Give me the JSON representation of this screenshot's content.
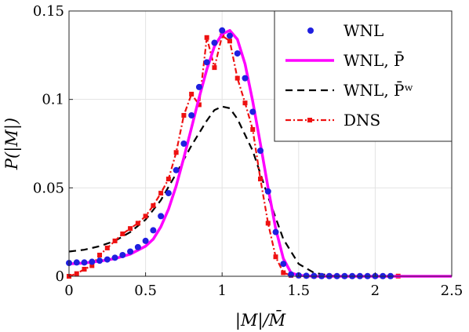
{
  "chart_data": {
    "type": "line",
    "xlabel": "|M|/M̄",
    "ylabel": "P(|M|)",
    "xlim": [
      0,
      2.5
    ],
    "ylim": [
      0,
      0.15
    ],
    "xticks": [
      "0",
      "0.5",
      "1",
      "1.5",
      "2",
      "2.5"
    ],
    "yticks": [
      "0",
      "0.05",
      "0.1",
      "0.15"
    ],
    "grid": true,
    "legend_position": "top-right",
    "colors": {
      "wnl_points": "#1f1fe0",
      "wnl_pbar": "#ff00ff",
      "wnl_pbar_w": "#000000",
      "dns": "#ee1111"
    },
    "series": [
      {
        "name": "WNL",
        "style": "markers",
        "x": [
          0,
          0.05,
          0.1,
          0.15,
          0.2,
          0.25,
          0.3,
          0.35,
          0.4,
          0.45,
          0.5,
          0.55,
          0.6,
          0.65,
          0.7,
          0.75,
          0.8,
          0.85,
          0.9,
          0.95,
          1.0,
          1.05,
          1.1,
          1.15,
          1.2,
          1.25,
          1.3,
          1.35,
          1.4,
          1.45,
          1.5,
          1.55,
          1.6,
          1.65,
          1.7,
          1.75,
          1.8,
          1.85,
          1.9,
          1.95,
          2.0,
          2.05,
          2.1
        ],
        "y": [
          0.0075,
          0.0078,
          0.0078,
          0.0082,
          0.0088,
          0.0095,
          0.0105,
          0.012,
          0.014,
          0.0165,
          0.02,
          0.026,
          0.034,
          0.047,
          0.06,
          0.075,
          0.091,
          0.107,
          0.121,
          0.132,
          0.139,
          0.136,
          0.126,
          0.112,
          0.093,
          0.071,
          0.048,
          0.025,
          0.007,
          0.001,
          0.0005,
          0.0003,
          0.0002,
          0.0001,
          0.0001,
          0.0001,
          0.0001,
          0.0001,
          0.0001,
          0.0001,
          0.0001,
          0.0001,
          0.0001
        ]
      },
      {
        "name": "WNL, P̄",
        "style": "solid",
        "x": [
          0,
          0.1,
          0.2,
          0.3,
          0.4,
          0.5,
          0.55,
          0.6,
          0.65,
          0.7,
          0.75,
          0.8,
          0.85,
          0.9,
          0.95,
          1.0,
          1.05,
          1.1,
          1.15,
          1.2,
          1.25,
          1.3,
          1.35,
          1.4,
          1.45,
          1.5,
          1.6,
          1.8,
          2.0,
          2.2,
          2.5
        ],
        "y": [
          0.007,
          0.0075,
          0.0085,
          0.01,
          0.0125,
          0.017,
          0.021,
          0.028,
          0.038,
          0.051,
          0.067,
          0.084,
          0.101,
          0.117,
          0.13,
          0.137,
          0.139,
          0.134,
          0.12,
          0.099,
          0.075,
          0.05,
          0.027,
          0.01,
          0.002,
          0.0005,
          0,
          0,
          0,
          0,
          0
        ]
      },
      {
        "name": "WNL, P̄ʷ",
        "style": "dashed",
        "x": [
          0,
          0.1,
          0.2,
          0.3,
          0.4,
          0.5,
          0.6,
          0.7,
          0.8,
          0.9,
          0.95,
          1.0,
          1.05,
          1.1,
          1.2,
          1.3,
          1.4,
          1.5,
          1.6,
          1.7,
          1.8,
          2.0,
          2.5
        ],
        "y": [
          0.014,
          0.015,
          0.017,
          0.02,
          0.025,
          0.032,
          0.043,
          0.058,
          0.074,
          0.088,
          0.094,
          0.096,
          0.095,
          0.089,
          0.071,
          0.045,
          0.021,
          0.007,
          0.002,
          0.0005,
          0,
          0,
          0
        ]
      },
      {
        "name": "DNS",
        "style": "dashdot-square",
        "x": [
          0,
          0.05,
          0.1,
          0.15,
          0.2,
          0.25,
          0.3,
          0.35,
          0.4,
          0.45,
          0.5,
          0.55,
          0.6,
          0.65,
          0.7,
          0.75,
          0.8,
          0.85,
          0.9,
          0.95,
          1.0,
          1.05,
          1.1,
          1.15,
          1.2,
          1.25,
          1.3,
          1.35,
          1.4,
          1.45,
          1.5,
          1.55,
          1.6,
          1.65,
          1.7,
          1.75,
          1.8,
          1.85,
          1.9,
          1.95,
          2.0,
          2.05,
          2.1,
          2.15
        ],
        "y": [
          0,
          0.0015,
          0.004,
          0.006,
          0.012,
          0.016,
          0.02,
          0.024,
          0.027,
          0.03,
          0.034,
          0.04,
          0.047,
          0.055,
          0.07,
          0.091,
          0.103,
          0.097,
          0.135,
          0.118,
          0.136,
          0.133,
          0.112,
          0.098,
          0.083,
          0.055,
          0.03,
          0.011,
          0.002,
          0.0005,
          0.0003,
          0.0002,
          0.0001,
          0.0001,
          0.0001,
          0.0001,
          0.0001,
          0.0001,
          0.0001,
          0.0001,
          0.0001,
          0.0001,
          0.0001,
          0.0001
        ]
      }
    ]
  }
}
